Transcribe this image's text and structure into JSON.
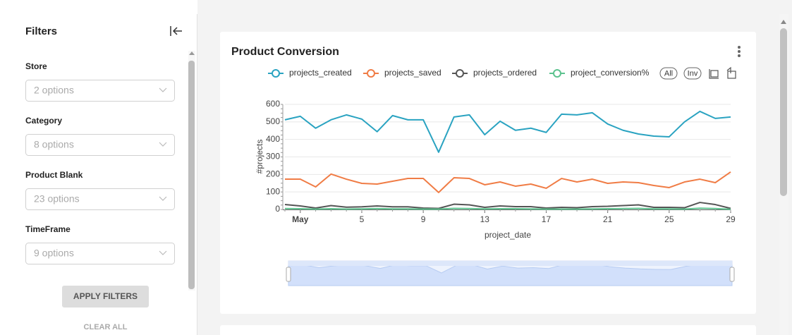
{
  "sidebar": {
    "title": "Filters",
    "filters": [
      {
        "label": "Store",
        "placeholder": "2 options"
      },
      {
        "label": "Category",
        "placeholder": "8 options"
      },
      {
        "label": "Product Blank",
        "placeholder": "23 options"
      },
      {
        "label": "TimeFrame",
        "placeholder": "9 options"
      }
    ],
    "apply": "APPLY FILTERS",
    "clear": "CLEAR ALL"
  },
  "chart_data": {
    "type": "line",
    "title": "Product Conversion",
    "x": [
      0,
      1,
      2,
      3,
      4,
      5,
      6,
      7,
      8,
      9,
      10,
      11,
      12,
      13,
      14,
      15,
      16,
      17,
      18,
      19,
      20,
      21,
      22,
      23,
      24,
      25,
      26,
      27,
      28,
      29
    ],
    "xlim": [
      0,
      29
    ],
    "xticks": [
      {
        "value": 1,
        "label": "May"
      },
      5,
      9,
      13,
      17,
      21,
      25,
      29
    ],
    "ylim": [
      0,
      600
    ],
    "yticks": [
      0,
      100,
      200,
      300,
      400,
      500,
      600
    ],
    "grid": true,
    "xlabel": "project_date",
    "ylabel": "#projects",
    "legend_buttons": [
      "All",
      "Inv"
    ],
    "series": [
      {
        "name": "projects_created",
        "color": "#2aa3c1",
        "values": [
          512,
          532,
          464,
          512,
          540,
          516,
          444,
          536,
          512,
          512,
          327,
          528,
          540,
          427,
          504,
          452,
          464,
          440,
          544,
          540,
          552,
          488,
          452,
          431,
          419,
          415,
          500,
          560,
          520,
          528
        ]
      },
      {
        "name": "projects_saved",
        "color": "#f07c45",
        "values": [
          173,
          173,
          129,
          202,
          173,
          149,
          145,
          161,
          177,
          177,
          97,
          181,
          177,
          141,
          157,
          133,
          145,
          121,
          177,
          157,
          173,
          149,
          157,
          153,
          137,
          125,
          157,
          173,
          153,
          214
        ]
      },
      {
        "name": "projects_ordered",
        "color": "#555555",
        "values": [
          28,
          20,
          8,
          22,
          13,
          15,
          20,
          15,
          15,
          8,
          6,
          30,
          26,
          12,
          20,
          16,
          16,
          8,
          12,
          10,
          16,
          18,
          22,
          26,
          12,
          12,
          10,
          40,
          28,
          6
        ]
      },
      {
        "name": "project_conversion%",
        "color": "#5cc28e",
        "values": [
          5,
          4,
          2,
          4,
          2,
          3,
          5,
          3,
          3,
          2,
          2,
          6,
          5,
          3,
          4,
          4,
          3,
          2,
          2,
          2,
          3,
          4,
          5,
          6,
          3,
          3,
          2,
          7,
          5,
          1
        ]
      }
    ]
  }
}
